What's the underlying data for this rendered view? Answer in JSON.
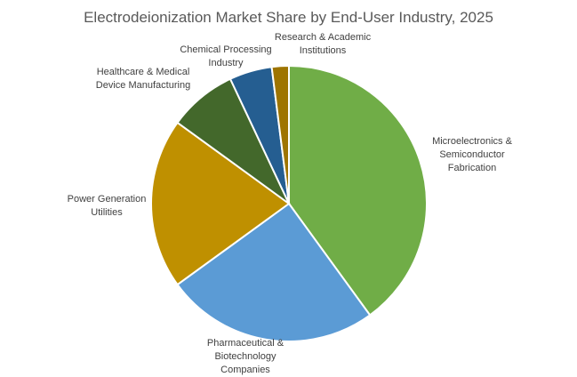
{
  "chart_data": {
    "type": "pie",
    "title": "Electrodeionization Market Share by End-User Industry, 2025",
    "start_angle_deg": 0,
    "direction": "clockwise",
    "slices": [
      {
        "label_lines": [
          "Microelectronics &",
          "Semiconductor",
          "Fabrication"
        ],
        "value": 40,
        "color": "#70AD47"
      },
      {
        "label_lines": [
          "Pharmaceutical &",
          "Biotechnology",
          "Companies"
        ],
        "value": 25,
        "color": "#5B9BD5"
      },
      {
        "label_lines": [
          "Power Generation",
          "Utilities"
        ],
        "value": 20,
        "color": "#BF9000"
      },
      {
        "label_lines": [
          "Healthcare & Medical",
          "Device Manufacturing"
        ],
        "value": 8,
        "color": "#43682B"
      },
      {
        "label_lines": [
          "Chemical Processing",
          "Industry"
        ],
        "value": 5,
        "color": "#255E91"
      },
      {
        "label_lines": [
          "Research & Academic",
          "Institutions"
        ],
        "value": 2,
        "color": "#9E7400"
      }
    ]
  }
}
